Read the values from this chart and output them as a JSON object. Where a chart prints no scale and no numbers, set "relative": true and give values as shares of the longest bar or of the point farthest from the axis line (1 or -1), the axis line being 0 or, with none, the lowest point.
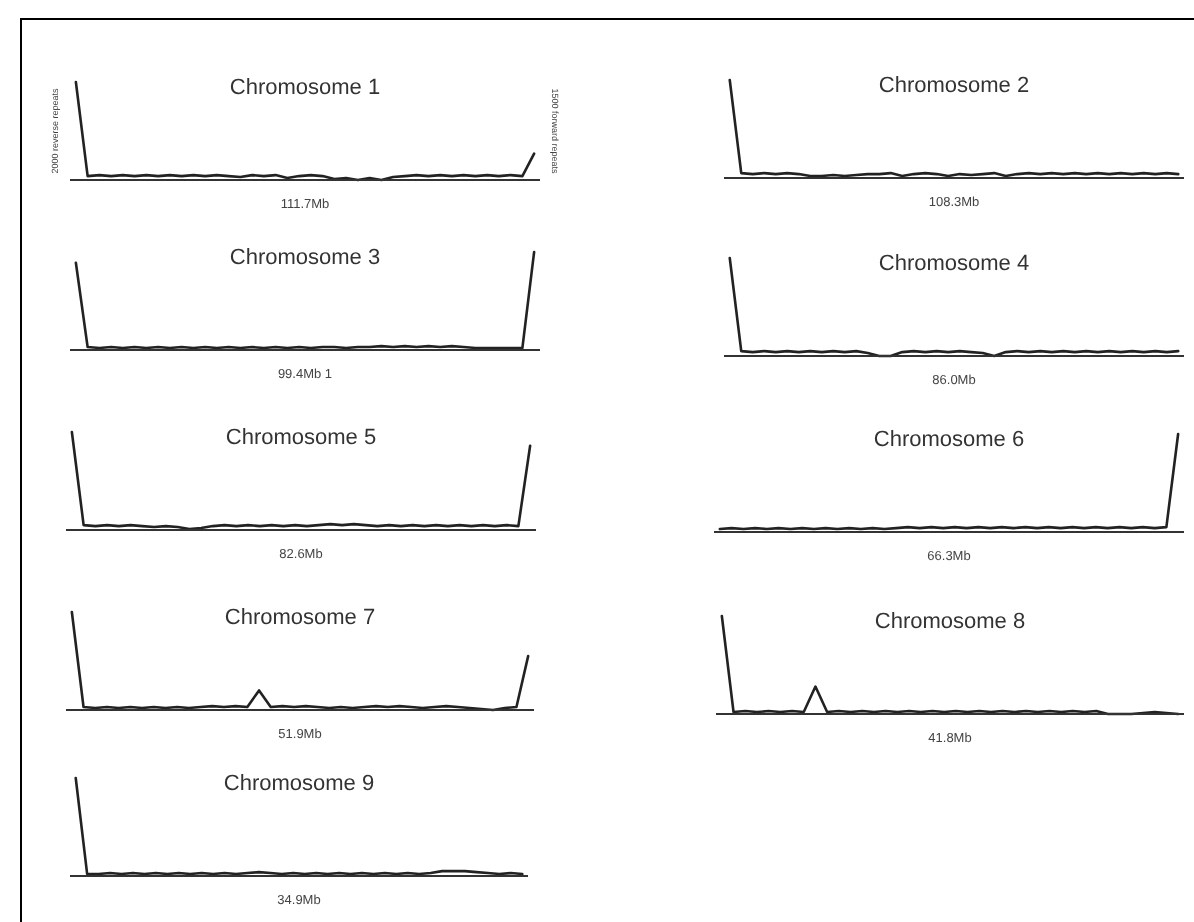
{
  "chart_data": [
    {
      "type": "line",
      "relative": true,
      "title": "Chromosome 1",
      "xlabel": "111.7Mb",
      "ylabel": "2000 reverse repeats",
      "y2label": "1500 forward repeats",
      "color": "#222222",
      "categories": [
        null,
        null,
        null,
        null,
        null,
        null,
        null,
        null,
        null,
        null,
        null,
        null,
        null,
        null,
        null,
        null,
        null,
        null,
        null,
        null,
        null,
        null,
        null,
        null,
        null,
        null,
        null,
        null,
        null,
        null,
        null,
        null,
        null,
        null,
        null,
        null,
        null,
        null,
        null,
        null
      ],
      "values": [
        1,
        0.04,
        0.05,
        0.04,
        0.05,
        0.04,
        0.05,
        0.04,
        0.05,
        0.04,
        0.05,
        0.04,
        0.05,
        0.04,
        0.03,
        0.05,
        0.04,
        0.05,
        0.02,
        0.04,
        0.05,
        0.04,
        0.01,
        0.02,
        0,
        0.02,
        0,
        0.03,
        0.04,
        0.05,
        0.04,
        0.05,
        0.04,
        0.05,
        0.04,
        0.05,
        0.04,
        0.05,
        0.04,
        0.27
      ]
    },
    {
      "type": "line",
      "relative": true,
      "title": "Chromosome 2",
      "xlabel": "108.3Mb",
      "color": "#222222",
      "categories": [
        null,
        null,
        null,
        null,
        null,
        null,
        null,
        null,
        null,
        null,
        null,
        null,
        null,
        null,
        null,
        null,
        null,
        null,
        null,
        null,
        null,
        null,
        null,
        null,
        null,
        null,
        null,
        null,
        null,
        null,
        null,
        null,
        null,
        null,
        null,
        null,
        null,
        null,
        null,
        null
      ],
      "values": [
        1,
        0.05,
        0.04,
        0.05,
        0.04,
        0.05,
        0.04,
        0.02,
        0.02,
        0.03,
        0.02,
        0.03,
        0.04,
        0.04,
        0.05,
        0.02,
        0.04,
        0.05,
        0.04,
        0.02,
        0.04,
        0.03,
        0.04,
        0.05,
        0.02,
        0.04,
        0.05,
        0.04,
        0.05,
        0.04,
        0.05,
        0.04,
        0.05,
        0.04,
        0.05,
        0.04,
        0.05,
        0.04,
        0.05,
        0.04
      ]
    },
    {
      "type": "line",
      "relative": true,
      "title": "Chromosome 3",
      "xlabel": "99.4Mb 1",
      "color": "#222222",
      "categories": [
        null,
        null,
        null,
        null,
        null,
        null,
        null,
        null,
        null,
        null,
        null,
        null,
        null,
        null,
        null,
        null,
        null,
        null,
        null,
        null,
        null,
        null,
        null,
        null,
        null,
        null,
        null,
        null,
        null,
        null,
        null,
        null,
        null,
        null,
        null,
        null,
        null,
        null,
        null,
        null
      ],
      "values": [
        0.89,
        0.03,
        0.02,
        0.03,
        0.02,
        0.03,
        0.02,
        0.03,
        0.02,
        0.03,
        0.02,
        0.03,
        0.02,
        0.03,
        0.02,
        0.03,
        0.02,
        0.03,
        0.02,
        0.03,
        0.02,
        0.03,
        0.03,
        0.02,
        0.03,
        0.03,
        0.04,
        0.03,
        0.04,
        0.03,
        0.04,
        0.03,
        0.04,
        0.03,
        0.02,
        0.02,
        0.02,
        0.02,
        0.02,
        1
      ]
    },
    {
      "type": "line",
      "relative": true,
      "title": "Chromosome 4",
      "xlabel": "86.0Mb",
      "color": "#222222",
      "categories": [
        null,
        null,
        null,
        null,
        null,
        null,
        null,
        null,
        null,
        null,
        null,
        null,
        null,
        null,
        null,
        null,
        null,
        null,
        null,
        null,
        null,
        null,
        null,
        null,
        null,
        null,
        null,
        null,
        null,
        null,
        null,
        null,
        null,
        null,
        null,
        null,
        null,
        null,
        null,
        null
      ],
      "values": [
        1,
        0.05,
        0.04,
        0.05,
        0.04,
        0.05,
        0.04,
        0.05,
        0.04,
        0.05,
        0.04,
        0.05,
        0.03,
        0,
        0,
        0.04,
        0.05,
        0.04,
        0.05,
        0.04,
        0.05,
        0.04,
        0.03,
        0,
        0.04,
        0.05,
        0.04,
        0.05,
        0.04,
        0.05,
        0.04,
        0.05,
        0.04,
        0.05,
        0.04,
        0.05,
        0.04,
        0.05,
        0.04,
        0.05
      ]
    },
    {
      "type": "line",
      "relative": true,
      "title": "Chromosome 5",
      "xlabel": "82.6Mb",
      "color": "#222222",
      "categories": [
        null,
        null,
        null,
        null,
        null,
        null,
        null,
        null,
        null,
        null,
        null,
        null,
        null,
        null,
        null,
        null,
        null,
        null,
        null,
        null,
        null,
        null,
        null,
        null,
        null,
        null,
        null,
        null,
        null,
        null,
        null,
        null,
        null,
        null,
        null,
        null,
        null,
        null,
        null,
        null
      ],
      "values": [
        1,
        0.05,
        0.04,
        0.05,
        0.04,
        0.05,
        0.04,
        0.03,
        0.04,
        0.03,
        0.01,
        0.02,
        0.04,
        0.05,
        0.04,
        0.05,
        0.04,
        0.05,
        0.04,
        0.05,
        0.04,
        0.05,
        0.06,
        0.05,
        0.06,
        0.05,
        0.04,
        0.05,
        0.04,
        0.05,
        0.04,
        0.05,
        0.04,
        0.05,
        0.04,
        0.05,
        0.04,
        0.05,
        0.04,
        0.86
      ]
    },
    {
      "type": "line",
      "relative": true,
      "title": "Chromosome 6",
      "xlabel": "66.3Mb",
      "color": "#222222",
      "categories": [
        null,
        null,
        null,
        null,
        null,
        null,
        null,
        null,
        null,
        null,
        null,
        null,
        null,
        null,
        null,
        null,
        null,
        null,
        null,
        null,
        null,
        null,
        null,
        null,
        null,
        null,
        null,
        null,
        null,
        null,
        null,
        null,
        null,
        null,
        null,
        null,
        null,
        null,
        null,
        null
      ],
      "values": [
        0.03,
        0.04,
        0.03,
        0.04,
        0.03,
        0.04,
        0.03,
        0.04,
        0.03,
        0.04,
        0.03,
        0.04,
        0.03,
        0.04,
        0.03,
        0.04,
        0.05,
        0.04,
        0.05,
        0.04,
        0.05,
        0.04,
        0.05,
        0.04,
        0.05,
        0.04,
        0.05,
        0.04,
        0.05,
        0.04,
        0.05,
        0.04,
        0.05,
        0.04,
        0.05,
        0.04,
        0.05,
        0.04,
        0.05,
        1
      ]
    },
    {
      "type": "line",
      "relative": true,
      "title": "Chromosome 7",
      "xlabel": "51.9Mb",
      "color": "#222222",
      "categories": [
        null,
        null,
        null,
        null,
        null,
        null,
        null,
        null,
        null,
        null,
        null,
        null,
        null,
        null,
        null,
        null,
        null,
        null,
        null,
        null,
        null,
        null,
        null,
        null,
        null,
        null,
        null,
        null,
        null,
        null,
        null,
        null,
        null,
        null,
        null,
        null,
        null,
        null,
        null,
        null
      ],
      "values": [
        1,
        0.03,
        0.02,
        0.03,
        0.02,
        0.03,
        0.02,
        0.03,
        0.02,
        0.03,
        0.02,
        0.03,
        0.04,
        0.03,
        0.04,
        0.03,
        0.2,
        0.03,
        0.04,
        0.03,
        0.04,
        0.03,
        0.02,
        0.03,
        0.02,
        0.03,
        0.04,
        0.03,
        0.04,
        0.03,
        0.02,
        0.03,
        0.04,
        0.03,
        0.02,
        0.01,
        0,
        0.02,
        0.03,
        0.55
      ]
    },
    {
      "type": "line",
      "relative": true,
      "title": "Chromosome 8",
      "xlabel": "41.8Mb",
      "color": "#222222",
      "categories": [
        null,
        null,
        null,
        null,
        null,
        null,
        null,
        null,
        null,
        null,
        null,
        null,
        null,
        null,
        null,
        null,
        null,
        null,
        null,
        null,
        null,
        null,
        null,
        null,
        null,
        null,
        null,
        null,
        null,
        null,
        null,
        null,
        null,
        null,
        null,
        null,
        null,
        null,
        null,
        null
      ],
      "values": [
        1,
        0.02,
        0.03,
        0.02,
        0.03,
        0.02,
        0.03,
        0.02,
        0.28,
        0.02,
        0.03,
        0.02,
        0.03,
        0.02,
        0.03,
        0.02,
        0.03,
        0.02,
        0.03,
        0.02,
        0.03,
        0.02,
        0.03,
        0.02,
        0.03,
        0.02,
        0.03,
        0.02,
        0.03,
        0.02,
        0.03,
        0.02,
        0.03,
        0,
        0,
        0,
        0.01,
        0.02,
        0.01,
        0
      ]
    },
    {
      "type": "line",
      "relative": true,
      "title": "Chromosome 9",
      "xlabel": "34.9Mb",
      "color": "#222222",
      "categories": [
        null,
        null,
        null,
        null,
        null,
        null,
        null,
        null,
        null,
        null,
        null,
        null,
        null,
        null,
        null,
        null,
        null,
        null,
        null,
        null,
        null,
        null,
        null,
        null,
        null,
        null,
        null,
        null,
        null,
        null,
        null,
        null,
        null,
        null,
        null,
        null,
        null,
        null,
        null,
        null
      ],
      "values": [
        1,
        0.02,
        0.02,
        0.03,
        0.02,
        0.03,
        0.02,
        0.03,
        0.02,
        0.03,
        0.02,
        0.03,
        0.02,
        0.03,
        0.02,
        0.03,
        0.04,
        0.03,
        0.02,
        0.03,
        0.02,
        0.03,
        0.02,
        0.03,
        0.02,
        0.03,
        0.02,
        0.03,
        0.02,
        0.03,
        0.02,
        0.03,
        0.05,
        0.05,
        0.05,
        0.04,
        0.03,
        0.02,
        0.03,
        0.02
      ]
    }
  ]
}
